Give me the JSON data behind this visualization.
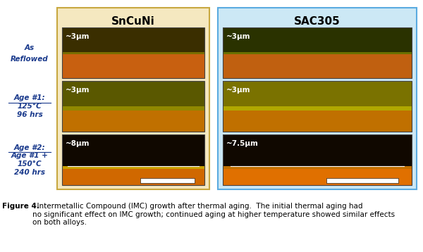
{
  "title_left": "SnCuNi",
  "title_right": "SAC305",
  "row_labels_line1": [
    "As",
    "Age #1:",
    "Age #2:"
  ],
  "row_labels_rest": [
    "Reflowed",
    "125°C\n96 hrs",
    "Age #1 +\n150°C\n240 hrs"
  ],
  "labels_left": [
    "~3μm",
    "~3μm",
    "~8μm"
  ],
  "labels_right": [
    "~3μm",
    "~3μm",
    "~7.5μm"
  ],
  "bg_left": "#f5e8c0",
  "bg_right": "#cce8f5",
  "border_left": "#c8a840",
  "border_right": "#5aabe0",
  "caption_bold": "Figure 4.",
  "caption_rest": "  Intermetallic Compound (IMC) growth after thermal aging.  The initial thermal aging had\nno significant effect on IMC growth; continued aging at higher temperature showed similar effects\non both alloys.",
  "row_label_color": "#1a3a8c",
  "title_color": "#000000",
  "label_color": "#ffffff",
  "figure_bg": "#ffffff",
  "img_colors": {
    "row0_left_top": "#3a2e00",
    "row0_left_imc": "#7a6e00",
    "row0_left_bot": "#c86010",
    "row0_right_top": "#2a3200",
    "row0_right_imc": "#6a7000",
    "row0_right_bot": "#c06010",
    "row1_left_top": "#5a5800",
    "row1_left_imc": "#908800",
    "row1_left_bot": "#c07000",
    "row1_right_top": "#7a7200",
    "row1_right_imc": "#b0a800",
    "row1_right_bot": "#c07000",
    "row2_left_top": "#100800",
    "row2_left_mid": "#c8a000",
    "row2_left_bot": "#d06800",
    "row2_right_top": "#100800",
    "row2_right_mid": "#c07000",
    "row2_right_bot": "#e07000"
  }
}
